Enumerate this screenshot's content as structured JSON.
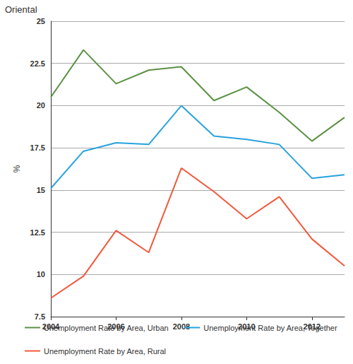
{
  "chart_data": {
    "type": "line",
    "title": "Oriental",
    "y_label": "%",
    "x": [
      2004,
      2005,
      2006,
      2007,
      2008,
      2009,
      2010,
      2011,
      2012,
      2013
    ],
    "series": [
      {
        "name": "Unemployment Rate by Area, Urban",
        "color": "#5b9143",
        "values": [
          20.5,
          23.3,
          21.3,
          22.1,
          22.3,
          20.3,
          21.1,
          19.6,
          17.9,
          19.3
        ]
      },
      {
        "name": "Unemployment Rate by Area, Together",
        "color": "#27a2dc",
        "values": [
          15.1,
          17.3,
          17.8,
          17.7,
          20.0,
          18.2,
          18.0,
          17.7,
          15.7,
          15.9
        ]
      },
      {
        "name": "Unemployment Rate by Area, Rural",
        "color": "#f2593a",
        "values": [
          8.6,
          9.9,
          12.6,
          11.3,
          16.3,
          14.9,
          13.3,
          14.6,
          12.1,
          10.5
        ]
      }
    ],
    "xlim": [
      2004,
      2013
    ],
    "xticks": [
      2004,
      2006,
      2008,
      2010,
      2012
    ],
    "ylim": [
      7.5,
      25
    ],
    "yticks": [
      7.5,
      10,
      12.5,
      15,
      17.5,
      20,
      22.5,
      25
    ],
    "grid": true,
    "legend": "bottom",
    "marker": "none",
    "line_style": "solid"
  }
}
